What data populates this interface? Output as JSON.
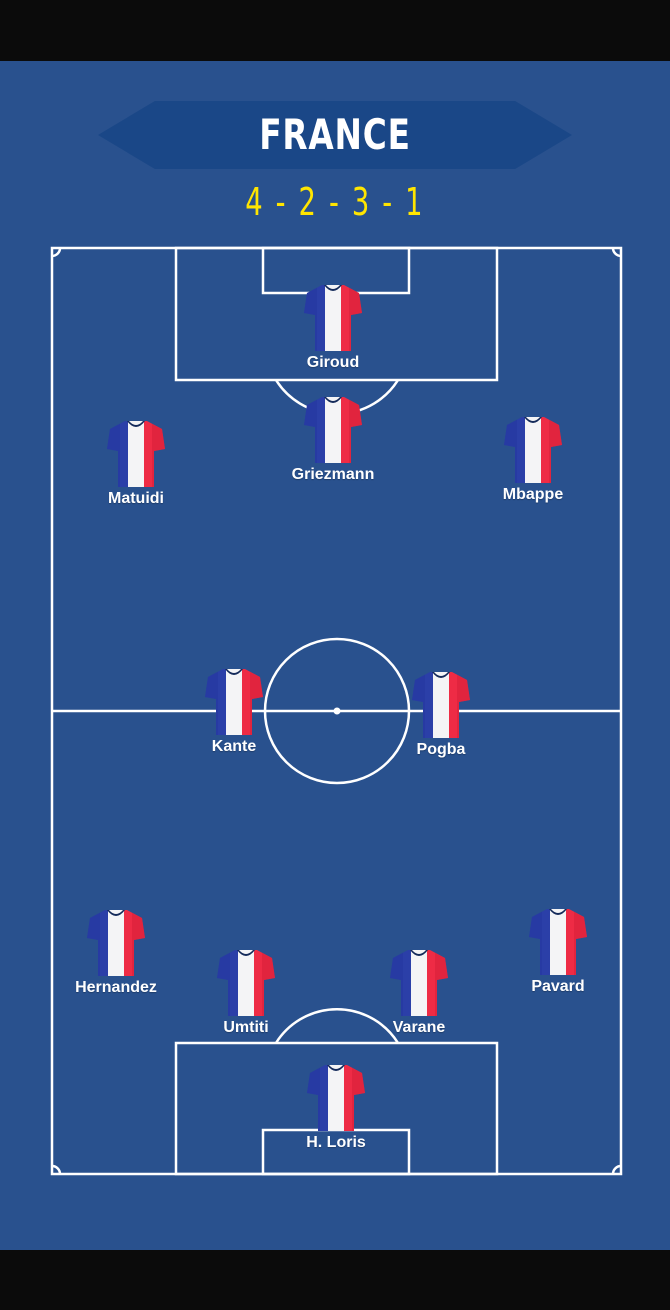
{
  "team": {
    "name": "FRANCE",
    "formation": "4 - 2 - 3 - 1"
  },
  "colors": {
    "background": "#29518e",
    "banner": "#1a4787",
    "formation_text": "#ffe500",
    "jersey_blue": "#2b3fa8",
    "jersey_white": "#f4f4f6",
    "jersey_red": "#ee2b45",
    "collar": "#142a5a"
  },
  "players": [
    {
      "id": "giroud",
      "name": "Giroud"
    },
    {
      "id": "griezmann",
      "name": "Griezmann"
    },
    {
      "id": "matuidi",
      "name": "Matuidi"
    },
    {
      "id": "mbappe",
      "name": "Mbappe"
    },
    {
      "id": "kante",
      "name": "Kante"
    },
    {
      "id": "pogba",
      "name": "Pogba"
    },
    {
      "id": "hernandez",
      "name": "Hernandez"
    },
    {
      "id": "umtiti",
      "name": "Umtiti"
    },
    {
      "id": "varane",
      "name": "Varane"
    },
    {
      "id": "pavard",
      "name": "Pavard"
    },
    {
      "id": "loris",
      "name": "H. Loris"
    }
  ]
}
